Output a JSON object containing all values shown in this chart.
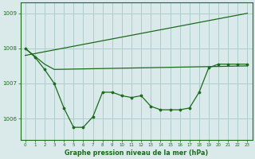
{
  "bg_color": "#daeaea",
  "grid_color": "#b0cccc",
  "line_color": "#1a6b1a",
  "title": "Graphe pression niveau de la mer (hPa)",
  "ylim": [
    1005.4,
    1009.3
  ],
  "xlim": [
    -0.5,
    23.5
  ],
  "yticks": [
    1006,
    1007,
    1008,
    1009
  ],
  "xticks": [
    0,
    1,
    2,
    3,
    4,
    5,
    6,
    7,
    8,
    9,
    10,
    11,
    12,
    13,
    14,
    15,
    16,
    17,
    18,
    19,
    20,
    21,
    22,
    23
  ],
  "xtick_labels": [
    "0",
    "1",
    "2",
    "3",
    "4",
    "5",
    "6",
    "7",
    "8",
    "9",
    "10",
    "11",
    "12",
    "13",
    "14",
    "15",
    "16",
    "17",
    "18",
    "19",
    "20",
    "21",
    "22",
    "23"
  ],
  "line_rising": {
    "x": [
      0,
      23
    ],
    "y": [
      1007.8,
      1009.0
    ]
  },
  "line_flat": {
    "x": [
      0,
      2,
      3,
      23
    ],
    "y": [
      1008.0,
      1007.55,
      1007.4,
      1007.5
    ]
  },
  "line_main": {
    "x": [
      0,
      1,
      2,
      3,
      4,
      5,
      6,
      7,
      8,
      9,
      10,
      11,
      12,
      13,
      14,
      15,
      16,
      17,
      18,
      19,
      20,
      21,
      22,
      23
    ],
    "y": [
      1008.0,
      1007.75,
      1007.4,
      1007.0,
      1006.3,
      1005.75,
      1005.75,
      1006.05,
      1006.75,
      1006.75,
      1006.65,
      1006.6,
      1006.65,
      1006.35,
      1006.25,
      1006.25,
      1006.25,
      1006.3,
      1006.75,
      1007.45,
      1007.55,
      1007.55,
      1007.55,
      1007.55
    ]
  }
}
